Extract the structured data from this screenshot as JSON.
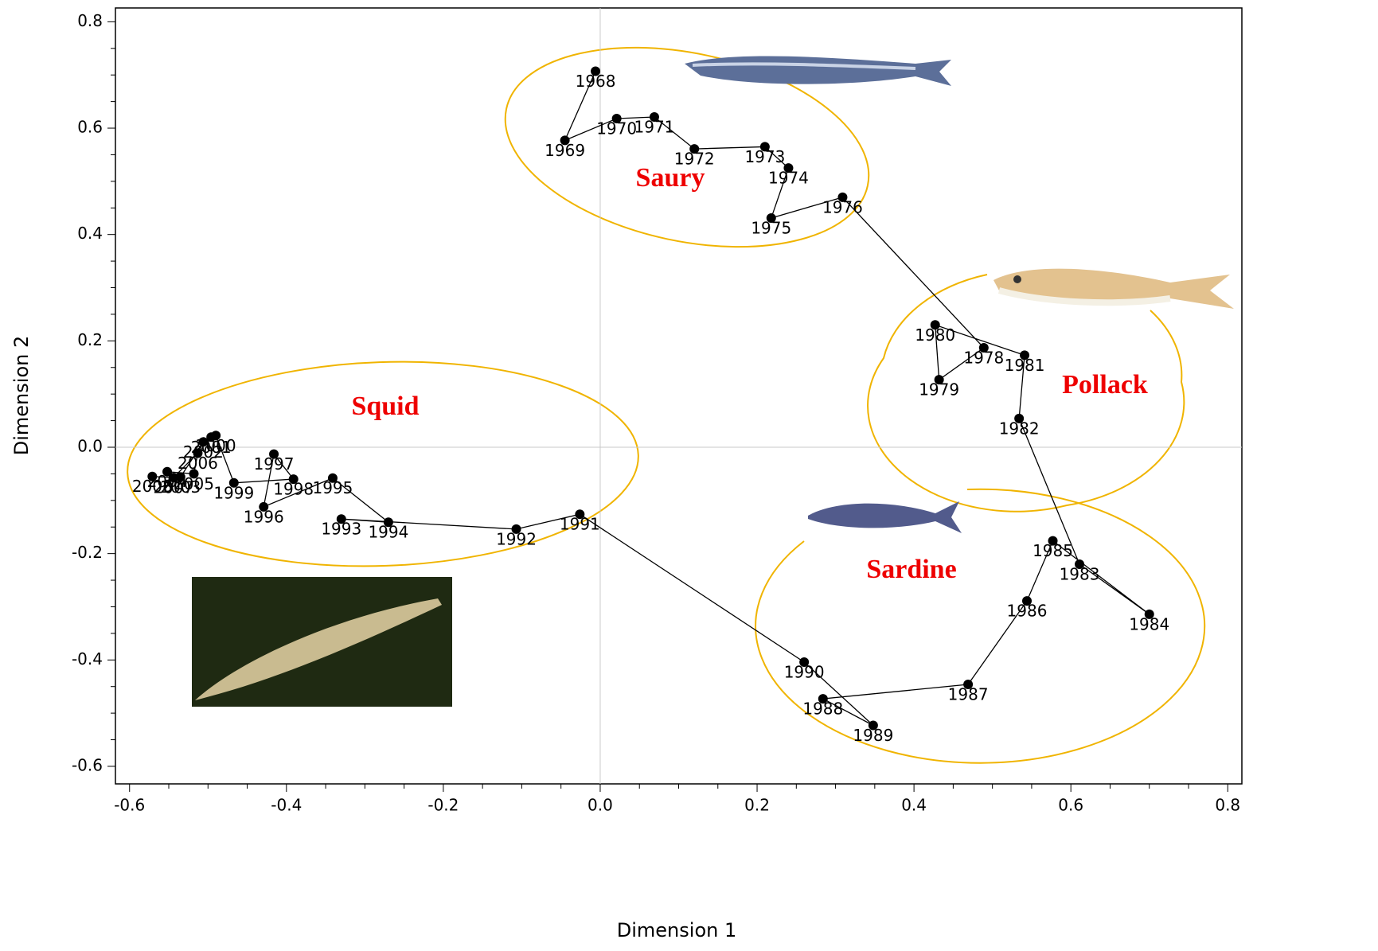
{
  "chart_data": {
    "type": "line",
    "xlabel": "Dimension 1",
    "ylabel": "Dimension 2",
    "xlim": [
      -0.618,
      0.818
    ],
    "ylim": [
      -0.633,
      0.826
    ],
    "xticks": [
      -0.6,
      -0.4,
      -0.2,
      {
        "value": 0,
        "label": "0.0"
      },
      0.2,
      0.4,
      0.6,
      0.8
    ],
    "yticks": [
      -0.6,
      -0.4,
      -0.2,
      {
        "value": 0,
        "label": "0.0"
      },
      0.2,
      0.4,
      0.6,
      0.8
    ],
    "zero_lines": true,
    "x": [
      -0.006,
      -0.045,
      0.021,
      0.069,
      0.12,
      0.21,
      0.24,
      0.218,
      0.309,
      0.489,
      0.432,
      0.427,
      0.541,
      0.534,
      0.611,
      0.7,
      0.577,
      0.544,
      0.469,
      0.284,
      0.348,
      0.26,
      -0.026,
      -0.107,
      -0.33,
      -0.27,
      -0.341,
      -0.429,
      -0.416,
      -0.391,
      -0.467,
      -0.49,
      -0.496,
      -0.506,
      -0.535,
      -0.552,
      -0.518,
      -0.513,
      -0.544,
      -0.571
    ],
    "series": [
      {
        "color": "#000000",
        "values": [
          0.707,
          0.577,
          0.618,
          0.621,
          0.561,
          0.565,
          0.525,
          0.431,
          0.47,
          0.187,
          0.127,
          0.23,
          0.173,
          0.054,
          -0.22,
          -0.314,
          -0.176,
          -0.289,
          -0.446,
          -0.473,
          -0.523,
          -0.404,
          -0.126,
          -0.154,
          -0.135,
          -0.141,
          -0.058,
          -0.112,
          -0.013,
          -0.06,
          -0.067,
          0.022,
          0.019,
          0.01,
          -0.056,
          -0.046,
          -0.05,
          -0.011,
          -0.057,
          -0.055
        ],
        "point_labels": [
          "1968",
          "1969",
          "1970",
          "1971",
          "1972",
          "1973",
          "1974",
          "1975",
          "1976",
          "1978",
          "1979",
          "1980",
          "1981",
          "1982",
          "1983",
          "1984",
          "1985",
          "1986",
          "1987",
          "1988",
          "1989",
          "1990",
          "1991",
          "1992",
          "1993",
          "1994",
          "1995",
          "1996",
          "1997",
          "1998",
          "1999",
          "2000",
          "2001",
          "2002",
          "2003",
          "2004",
          "2005",
          "2006",
          "2007",
          "2008"
        ]
      }
    ],
    "annotations": [
      "Saury",
      "Pollack",
      "Squid",
      "Sardine"
    ],
    "annotation_color": "#ee0000",
    "group_outline_color": "#f0b400"
  }
}
